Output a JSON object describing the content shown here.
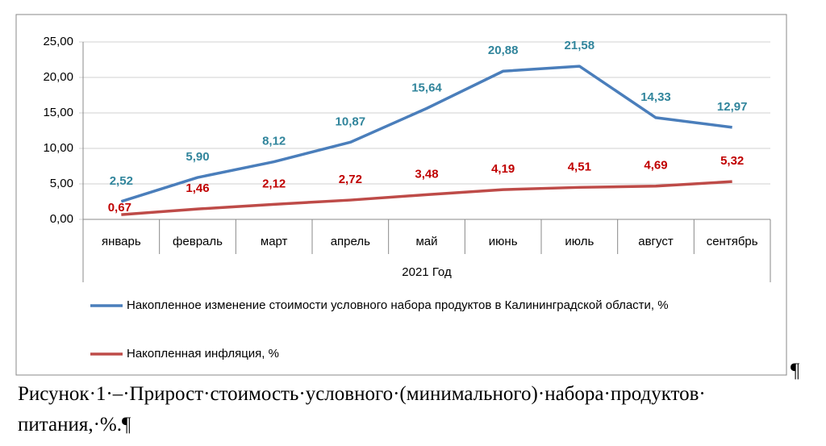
{
  "chart_data": {
    "type": "line",
    "categories": [
      "январь",
      "февраль",
      "март",
      "апрель",
      "май",
      "июнь",
      "июль",
      "август",
      "сентябрь"
    ],
    "x_label": "2021 Год",
    "ylim": [
      0,
      25
    ],
    "yticks": [
      {
        "value": 0,
        "label": "0,00"
      },
      {
        "value": 5,
        "label": "5,00"
      },
      {
        "value": 10,
        "label": "10,00"
      },
      {
        "value": 15,
        "label": "15,00"
      },
      {
        "value": 20,
        "label": "20,00"
      },
      {
        "value": 25,
        "label": "25,00"
      }
    ],
    "grid": true,
    "legend": "bottom",
    "series": [
      {
        "name": "Накопленное изменение стоимости условного набора продуктов в Калининградской области, %",
        "color": "#4a7ebb",
        "label_color": "#31859c",
        "values": [
          2.52,
          5.9,
          8.12,
          10.87,
          15.64,
          20.88,
          21.58,
          14.33,
          12.97
        ],
        "value_labels": [
          "2,52",
          "5,90",
          "8,12",
          "10,87",
          "15,64",
          "20,88",
          "21,58",
          "14,33",
          "12,97"
        ]
      },
      {
        "name": "Накопленная инфляция, %",
        "color": "#be4b48",
        "label_color": "#c00000",
        "values": [
          0.67,
          1.46,
          2.12,
          2.72,
          3.48,
          4.19,
          4.51,
          4.69,
          5.32
        ],
        "value_labels": [
          "0,67",
          "1,46",
          "2,12",
          "2,72",
          "3,48",
          "4,19",
          "4,51",
          "4,69",
          "5,32"
        ]
      }
    ]
  },
  "paragraph_mark": "¶",
  "caption": "Рисунок·1·–·Прирост·стоимость·условного·(минимального)·набора·продуктов· питания,·%.¶"
}
